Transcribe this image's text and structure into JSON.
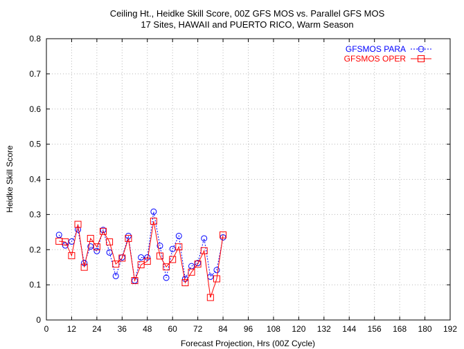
{
  "chart_data": {
    "type": "line",
    "title": "Ceiling Ht., Heidke Skill Score, 00Z GFS MOS vs. Parallel GFS MOS",
    "subtitle": "17 Sites, HAWAII and PUERTO RICO, Warm Season",
    "xlabel": "Forecast Projection, Hrs (00Z Cycle)",
    "ylabel": "Heidke Skill Score",
    "xlim": [
      0,
      192
    ],
    "ylim": [
      0,
      0.8
    ],
    "xticks": [
      "0",
      "12",
      "24",
      "36",
      "48",
      "60",
      "72",
      "84",
      "96",
      "108",
      "120",
      "132",
      "144",
      "156",
      "168",
      "180",
      "192"
    ],
    "yticks": [
      "0",
      "0.1",
      "0.2",
      "0.3",
      "0.4",
      "0.5",
      "0.6",
      "0.7",
      "0.8"
    ],
    "grid": true,
    "legend_position": "top-right",
    "x": [
      6,
      9,
      12,
      15,
      18,
      21,
      24,
      27,
      30,
      33,
      36,
      39,
      42,
      45,
      48,
      51,
      54,
      57,
      60,
      63,
      66,
      69,
      72,
      75,
      78,
      81,
      84
    ],
    "series": [
      {
        "name": "GFSMOS PARA",
        "color": "#0000ff",
        "line_style": "dotted",
        "marker": "circle",
        "values": [
          0.242,
          0.212,
          0.223,
          0.257,
          0.162,
          0.209,
          0.196,
          0.256,
          0.192,
          0.125,
          0.178,
          0.239,
          0.112,
          0.178,
          0.178,
          0.308,
          0.211,
          0.12,
          0.202,
          0.239,
          0.117,
          0.153,
          0.162,
          0.232,
          0.123,
          0.142,
          0.235
        ]
      },
      {
        "name": "GFSMOS OPER",
        "color": "#ff0000",
        "line_style": "solid",
        "marker": "square",
        "values": [
          0.224,
          0.222,
          0.183,
          0.272,
          0.15,
          0.232,
          0.208,
          0.252,
          0.222,
          0.159,
          0.176,
          0.232,
          0.112,
          0.157,
          0.167,
          0.281,
          0.182,
          0.151,
          0.172,
          0.208,
          0.106,
          0.136,
          0.159,
          0.197,
          0.064,
          0.117,
          0.242
        ]
      }
    ]
  }
}
